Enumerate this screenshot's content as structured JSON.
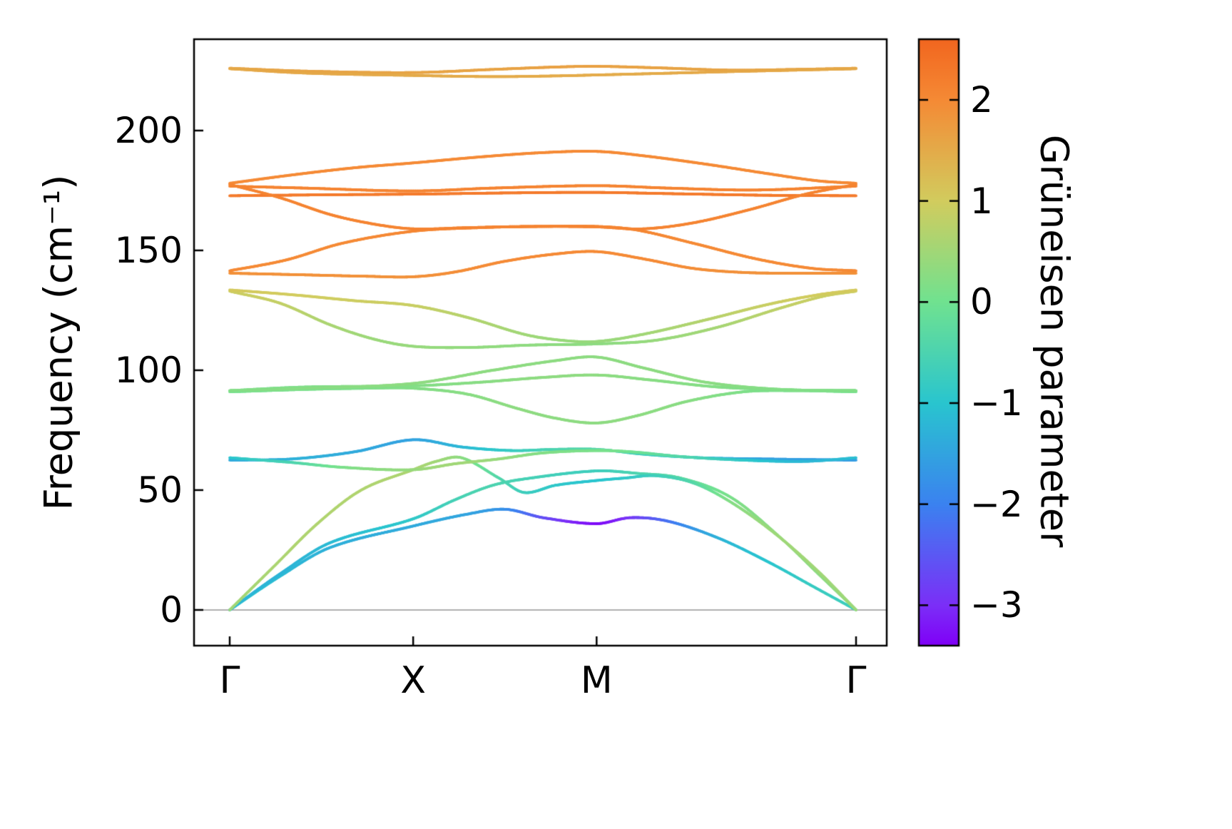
{
  "chart_data": {
    "type": "line",
    "title": "",
    "xlabel": "",
    "ylabel": "Frequency (cm⁻¹)",
    "grid": false,
    "ylim": [
      -14.9,
      238.1
    ],
    "y_ticks": [
      {
        "v": 0,
        "label": "0"
      },
      {
        "v": 50,
        "label": "50"
      },
      {
        "v": 100,
        "label": "100"
      },
      {
        "v": 150,
        "label": "150"
      },
      {
        "v": 200,
        "label": "200"
      }
    ],
    "x_ticks": [
      {
        "s": 0,
        "label": "Γ"
      },
      {
        "s": 0.29289,
        "label": "X"
      },
      {
        "s": 0.58579,
        "label": "M"
      },
      {
        "s": 1,
        "label": "Γ"
      }
    ],
    "segment_lengths": [
      1,
      1,
      1.41421
    ],
    "zero_line": {
      "show": true,
      "color": "#b0b0b0"
    },
    "frame_color": "#000000",
    "line_width": 3.8,
    "colorbar": {
      "label": "Grüneisen parameter",
      "vmin": -3.4,
      "vmax": 2.6,
      "ticks": [
        {
          "v": 2,
          "label": "2"
        },
        {
          "v": 1,
          "label": "1"
        },
        {
          "v": 0,
          "label": "0"
        },
        {
          "v": -1,
          "label": "−1"
        },
        {
          "v": -2,
          "label": "−2"
        },
        {
          "v": -3,
          "label": "−3"
        }
      ],
      "stops": [
        [
          0.0,
          "#8000f7"
        ],
        [
          0.067,
          "#7b2ff7"
        ],
        [
          0.233,
          "#3b82f0"
        ],
        [
          0.4,
          "#29c5cf"
        ],
        [
          0.567,
          "#70e290"
        ],
        [
          0.733,
          "#d2cc5e"
        ],
        [
          0.9,
          "#f58a35"
        ],
        [
          1.0,
          "#f2661f"
        ]
      ]
    },
    "bands": [
      {
        "name": "acoustic-1",
        "points": [
          [
            0,
            0,
            -0.9
          ],
          [
            0.08,
            14,
            -1.15
          ],
          [
            0.16,
            26,
            -1.3
          ],
          [
            0.2929,
            35,
            -1.4
          ],
          [
            0.38,
            40,
            -1.5
          ],
          [
            0.44,
            42,
            -1.8
          ],
          [
            0.5,
            38.5,
            -2.6
          ],
          [
            0.5858,
            36,
            -3.3
          ],
          [
            0.64,
            38.5,
            -2.9
          ],
          [
            0.7,
            37,
            -2.2
          ],
          [
            0.78,
            30,
            -1.3
          ],
          [
            0.86,
            20,
            -1.0
          ],
          [
            0.93,
            10,
            -0.8
          ],
          [
            1,
            0,
            -0.7
          ]
        ]
      },
      {
        "name": "acoustic-2",
        "points": [
          [
            0,
            0,
            -1.2
          ],
          [
            0.08,
            15,
            -1.25
          ],
          [
            0.16,
            28,
            -1.15
          ],
          [
            0.2929,
            38,
            -0.9
          ],
          [
            0.36,
            46,
            -0.6
          ],
          [
            0.42,
            52,
            -0.5
          ],
          [
            0.48,
            55,
            -0.6
          ],
          [
            0.5858,
            58,
            -0.7
          ],
          [
            0.65,
            57,
            -0.5
          ],
          [
            0.72,
            55,
            -0.3
          ],
          [
            0.8,
            47,
            0.1
          ],
          [
            0.88,
            30,
            0.3
          ],
          [
            0.94,
            15,
            0.3
          ],
          [
            1,
            0,
            0.3
          ]
        ]
      },
      {
        "name": "acoustic-3",
        "points": [
          [
            0,
            0,
            0.5
          ],
          [
            0.07,
            18,
            0.6
          ],
          [
            0.14,
            36,
            0.65
          ],
          [
            0.21,
            50,
            0.65
          ],
          [
            0.2929,
            58.5,
            0.6
          ],
          [
            0.33,
            62,
            0.5
          ],
          [
            0.37,
            63.5,
            0.3
          ],
          [
            0.43,
            55,
            -0.4
          ],
          [
            0.47,
            49,
            -0.7
          ],
          [
            0.52,
            52,
            -0.9
          ],
          [
            0.5858,
            54,
            -1.0
          ],
          [
            0.63,
            55,
            -0.9
          ],
          [
            0.68,
            56,
            -0.7
          ],
          [
            0.74,
            53,
            -0.4
          ],
          [
            0.8,
            45,
            0.2
          ],
          [
            0.87,
            32,
            0.45
          ],
          [
            0.94,
            16,
            0.5
          ],
          [
            1,
            0,
            0.45
          ]
        ]
      },
      {
        "name": "optical-1",
        "points": [
          [
            0,
            62.5,
            -1.4
          ],
          [
            0.1,
            63,
            -1.3
          ],
          [
            0.2,
            66,
            -1.4
          ],
          [
            0.2929,
            71,
            -1.5
          ],
          [
            0.37,
            68,
            -1.2
          ],
          [
            0.45,
            66.5,
            -0.8
          ],
          [
            0.52,
            67,
            -0.5
          ],
          [
            0.5858,
            67,
            -0.4
          ],
          [
            0.66,
            65,
            -0.7
          ],
          [
            0.75,
            63.5,
            -1.1
          ],
          [
            0.85,
            63,
            -1.5
          ],
          [
            1,
            62.5,
            -1.6
          ]
        ]
      },
      {
        "name": "optical-2",
        "points": [
          [
            0,
            63.5,
            -1.0
          ],
          [
            0.1,
            61.5,
            -0.5
          ],
          [
            0.18,
            59.5,
            0.1
          ],
          [
            0.2929,
            58.5,
            0.4
          ],
          [
            0.36,
            61,
            0.5
          ],
          [
            0.43,
            63,
            0.4
          ],
          [
            0.5,
            65.5,
            0.2
          ],
          [
            0.5858,
            66.5,
            0.1
          ],
          [
            0.64,
            66,
            0.0
          ],
          [
            0.72,
            64,
            -0.4
          ],
          [
            0.82,
            62.5,
            -0.9
          ],
          [
            0.92,
            62,
            -1.2
          ],
          [
            1,
            63.5,
            -1.1
          ]
        ]
      },
      {
        "name": "optical-3",
        "points": [
          [
            0,
            91,
            0.05
          ],
          [
            0.12,
            92,
            0.1
          ],
          [
            0.22,
            92.5,
            0.15
          ],
          [
            0.2929,
            92.5,
            0.2
          ],
          [
            0.38,
            90,
            0.25
          ],
          [
            0.46,
            84,
            0.3
          ],
          [
            0.52,
            80,
            0.3
          ],
          [
            0.5858,
            78,
            0.3
          ],
          [
            0.65,
            81,
            0.3
          ],
          [
            0.73,
            87,
            0.25
          ],
          [
            0.82,
            91,
            0.15
          ],
          [
            0.9,
            91.5,
            0.1
          ],
          [
            1,
            91,
            0.05
          ]
        ]
      },
      {
        "name": "optical-4",
        "points": [
          [
            0,
            91.5,
            0.1
          ],
          [
            0.12,
            93,
            0.15
          ],
          [
            0.2929,
            93.5,
            0.2
          ],
          [
            0.4,
            95,
            0.25
          ],
          [
            0.5,
            97,
            0.3
          ],
          [
            0.5858,
            98,
            0.3
          ],
          [
            0.67,
            96,
            0.25
          ],
          [
            0.78,
            93,
            0.2
          ],
          [
            0.9,
            91.8,
            0.12
          ],
          [
            1,
            91.5,
            0.1
          ]
        ]
      },
      {
        "name": "optical-5",
        "points": [
          [
            0,
            91.5,
            0.2
          ],
          [
            0.12,
            92.5,
            0.25
          ],
          [
            0.2929,
            94.5,
            0.3
          ],
          [
            0.42,
            100,
            0.3
          ],
          [
            0.52,
            104,
            0.3
          ],
          [
            0.5858,
            105.5,
            0.3
          ],
          [
            0.66,
            101,
            0.3
          ],
          [
            0.76,
            95,
            0.28
          ],
          [
            0.88,
            92,
            0.2
          ],
          [
            1,
            91.5,
            0.18
          ]
        ]
      },
      {
        "name": "optical-6",
        "points": [
          [
            0,
            133,
            0.95
          ],
          [
            0.08,
            128,
            0.85
          ],
          [
            0.16,
            119,
            0.6
          ],
          [
            0.23,
            113,
            0.45
          ],
          [
            0.2929,
            110,
            0.4
          ],
          [
            0.38,
            109.5,
            0.35
          ],
          [
            0.48,
            110.5,
            0.32
          ],
          [
            0.5858,
            111,
            0.3
          ],
          [
            0.68,
            112.5,
            0.4
          ],
          [
            0.78,
            118,
            0.55
          ],
          [
            0.88,
            126,
            0.8
          ],
          [
            0.95,
            131,
            0.92
          ],
          [
            1,
            133,
            0.95
          ]
        ]
      },
      {
        "name": "optical-7",
        "points": [
          [
            0,
            133.5,
            1.05
          ],
          [
            0.1,
            131.5,
            1.0
          ],
          [
            0.2,
            129,
            0.95
          ],
          [
            0.2929,
            127,
            0.9
          ],
          [
            0.38,
            122,
            0.7
          ],
          [
            0.47,
            115,
            0.5
          ],
          [
            0.53,
            112.5,
            0.42
          ],
          [
            0.5858,
            112,
            0.4
          ],
          [
            0.66,
            115,
            0.5
          ],
          [
            0.76,
            121,
            0.7
          ],
          [
            0.86,
            127.5,
            0.9
          ],
          [
            0.94,
            131.5,
            1.0
          ],
          [
            1,
            133.5,
            1.05
          ]
        ]
      },
      {
        "name": "optical-8",
        "points": [
          [
            0,
            140.5,
            1.9
          ],
          [
            0.12,
            139.8,
            1.9
          ],
          [
            0.22,
            139.2,
            1.9
          ],
          [
            0.2929,
            139,
            1.9
          ],
          [
            0.36,
            141,
            1.95
          ],
          [
            0.44,
            145.5,
            2.0
          ],
          [
            0.52,
            148.5,
            2.0
          ],
          [
            0.5858,
            149.5,
            2.0
          ],
          [
            0.66,
            146.5,
            2.0
          ],
          [
            0.74,
            142.5,
            1.95
          ],
          [
            0.82,
            140.8,
            1.9
          ],
          [
            0.9,
            140.5,
            1.9
          ],
          [
            1,
            140.5,
            1.9
          ]
        ]
      },
      {
        "name": "optical-9",
        "points": [
          [
            0,
            141.5,
            2.0
          ],
          [
            0.09,
            146,
            2.0
          ],
          [
            0.18,
            153,
            2.0
          ],
          [
            0.2929,
            158,
            2.05
          ],
          [
            0.4,
            159.5,
            2.05
          ],
          [
            0.5,
            160,
            2.05
          ],
          [
            0.5858,
            160,
            2.05
          ],
          [
            0.65,
            158.5,
            2.05
          ],
          [
            0.74,
            153,
            2.0
          ],
          [
            0.84,
            146.5,
            2.0
          ],
          [
            0.93,
            142.5,
            2.0
          ],
          [
            1,
            141.5,
            2.0
          ]
        ]
      },
      {
        "name": "optical-10",
        "points": [
          [
            0,
            172.8,
            2.25
          ],
          [
            0.15,
            173.2,
            2.25
          ],
          [
            0.3,
            173.5,
            2.25
          ],
          [
            0.45,
            174,
            2.25
          ],
          [
            0.5858,
            174.2,
            2.25
          ],
          [
            0.72,
            173.6,
            2.25
          ],
          [
            0.86,
            173,
            2.25
          ],
          [
            1,
            172.8,
            2.25
          ]
        ]
      },
      {
        "name": "optical-11",
        "points": [
          [
            0,
            176.8,
            2.1
          ],
          [
            0.12,
            176,
            2.1
          ],
          [
            0.2929,
            174.8,
            2.1
          ],
          [
            0.42,
            176,
            2.1
          ],
          [
            0.5858,
            177,
            2.1
          ],
          [
            0.7,
            176,
            2.1
          ],
          [
            0.84,
            175.2,
            2.1
          ],
          [
            1,
            176.8,
            2.1
          ]
        ]
      },
      {
        "name": "optical-12",
        "points": [
          [
            0,
            178,
            2.0
          ],
          [
            0.1,
            181.5,
            2.0
          ],
          [
            0.2,
            184.5,
            2.0
          ],
          [
            0.2929,
            186.5,
            2.0
          ],
          [
            0.4,
            189,
            2.0
          ],
          [
            0.5,
            190.8,
            2.0
          ],
          [
            0.5858,
            191.3,
            2.0
          ],
          [
            0.66,
            189.5,
            2.0
          ],
          [
            0.76,
            186,
            2.0
          ],
          [
            0.86,
            182,
            2.0
          ],
          [
            0.94,
            179,
            2.0
          ],
          [
            1,
            178,
            2.0
          ]
        ]
      },
      {
        "name": "optical-13",
        "points": [
          [
            0,
            177.5,
            2.1
          ],
          [
            0.08,
            172,
            2.1
          ],
          [
            0.16,
            165,
            2.1
          ],
          [
            0.23,
            161,
            2.1
          ],
          [
            0.2929,
            159,
            2.1
          ],
          [
            0.38,
            159.5,
            2.1
          ],
          [
            0.48,
            160,
            2.1
          ],
          [
            0.5858,
            159.8,
            2.1
          ],
          [
            0.66,
            159,
            2.1
          ],
          [
            0.74,
            161.5,
            2.1
          ],
          [
            0.83,
            167,
            2.1
          ],
          [
            0.92,
            173.5,
            2.1
          ],
          [
            1,
            177.5,
            2.1
          ]
        ]
      },
      {
        "name": "optical-14",
        "points": [
          [
            0,
            226,
            1.6
          ],
          [
            0.12,
            224.8,
            1.6
          ],
          [
            0.2929,
            224.2,
            1.6
          ],
          [
            0.42,
            225.5,
            1.62
          ],
          [
            0.52,
            226.5,
            1.65
          ],
          [
            0.5858,
            226.8,
            1.65
          ],
          [
            0.68,
            226.2,
            1.62
          ],
          [
            0.8,
            225.2,
            1.6
          ],
          [
            0.9,
            225.5,
            1.6
          ],
          [
            1,
            226,
            1.6
          ]
        ]
      },
      {
        "name": "optical-15",
        "points": [
          [
            0,
            225.8,
            1.55
          ],
          [
            0.12,
            224,
            1.55
          ],
          [
            0.2929,
            223,
            1.5
          ],
          [
            0.42,
            222.5,
            1.5
          ],
          [
            0.52,
            222.8,
            1.5
          ],
          [
            0.5858,
            223.2,
            1.5
          ],
          [
            0.68,
            223.8,
            1.5
          ],
          [
            0.8,
            224.6,
            1.55
          ],
          [
            0.9,
            225.2,
            1.55
          ],
          [
            1,
            225.8,
            1.55
          ]
        ]
      }
    ]
  }
}
